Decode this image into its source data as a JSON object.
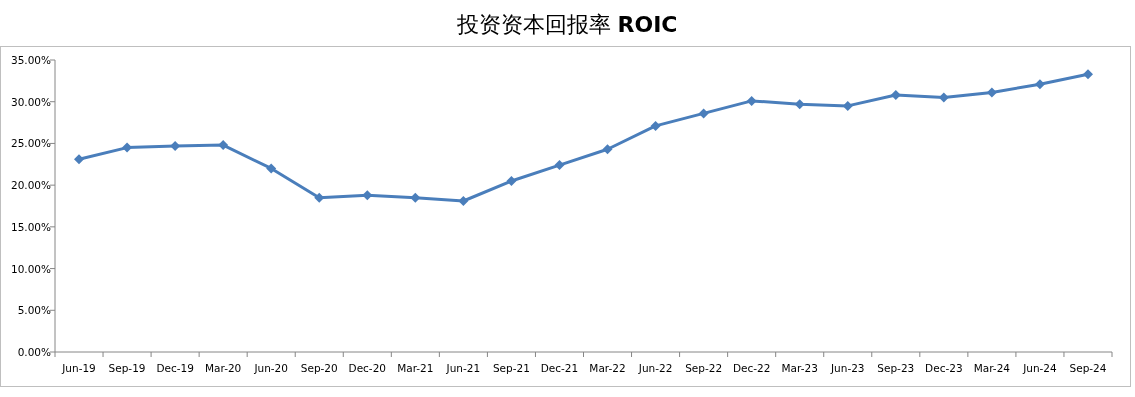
{
  "chart_data": {
    "type": "line",
    "title": "投资资本回报率 **ROIC**",
    "categories": [
      "Jun-19",
      "Sep-19",
      "Dec-19",
      "Mar-20",
      "Jun-20",
      "Sep-20",
      "Dec-20",
      "Mar-21",
      "Jun-21",
      "Sep-21",
      "Dec-21",
      "Mar-22",
      "Jun-22",
      "Sep-22",
      "Dec-22",
      "Mar-23",
      "Jun-23",
      "Sep-23",
      "Dec-23",
      "Mar-24",
      "Jun-24",
      "Sep-24"
    ],
    "series": [
      {
        "color": "#4a7ebb",
        "values": [
          23.1,
          24.5,
          24.7,
          24.8,
          22.0,
          18.5,
          18.8,
          18.5,
          18.1,
          20.5,
          22.4,
          24.3,
          27.1,
          28.6,
          30.1,
          29.7,
          29.5,
          30.8,
          30.5,
          31.1,
          32.1,
          33.3
        ]
      }
    ],
    "ylim": [
      0,
      35
    ],
    "yticks": [
      {
        "value": 0,
        "label": "0.00%"
      },
      {
        "value": 5,
        "label": "5.00%"
      },
      {
        "value": 10,
        "label": "10.00%"
      },
      {
        "value": 15,
        "label": "15.00%"
      },
      {
        "value": 20,
        "label": "20.00%"
      },
      {
        "value": 25,
        "label": "25.00%"
      },
      {
        "value": 30,
        "label": "30.00%"
      },
      {
        "value": 35,
        "label": "35.00%"
      }
    ],
    "grid": false,
    "marker": "diamond",
    "line_style": "solid"
  }
}
